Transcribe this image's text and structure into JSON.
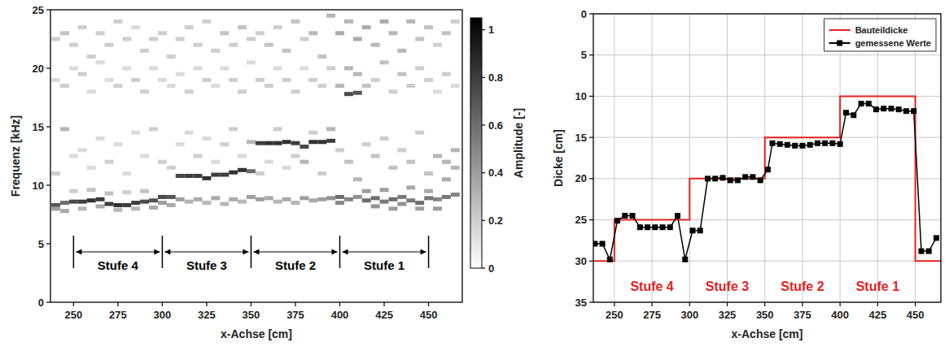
{
  "chart_data": [
    {
      "type": "heatmap",
      "x_label": "x-Achse [cm]",
      "y_label": "Frequenz [kHz]",
      "xlim": [
        237,
        469
      ],
      "xticks": [
        250,
        275,
        300,
        325,
        350,
        375,
        400,
        425,
        450
      ],
      "ylim": [
        0,
        25
      ],
      "yticks": [
        0,
        5,
        10,
        15,
        20,
        25
      ],
      "cells": [
        [
          240,
          8.3,
          0.7
        ],
        [
          240,
          8.0,
          0.4
        ],
        [
          240,
          11,
          0.2
        ],
        [
          240,
          19,
          0.15
        ],
        [
          240,
          22.5,
          0.2
        ],
        [
          245,
          8.5,
          0.6
        ],
        [
          245,
          7.8,
          0.35
        ],
        [
          245,
          14.8,
          0.3
        ],
        [
          245,
          18.5,
          0.2
        ],
        [
          245,
          23,
          0.25
        ],
        [
          250,
          8.6,
          0.75
        ],
        [
          250,
          9.5,
          0.2
        ],
        [
          250,
          12.5,
          0.15
        ],
        [
          250,
          20,
          0.15
        ],
        [
          250,
          22,
          0.2
        ],
        [
          255,
          8.6,
          0.8
        ],
        [
          255,
          8.0,
          0.3
        ],
        [
          255,
          13,
          0.15
        ],
        [
          255,
          19.5,
          0.2
        ],
        [
          255,
          23.5,
          0.2
        ],
        [
          260,
          8.7,
          0.85
        ],
        [
          260,
          9.6,
          0.25
        ],
        [
          260,
          11.5,
          0.15
        ],
        [
          260,
          18,
          0.15
        ],
        [
          260,
          21,
          0.2
        ],
        [
          265,
          8.8,
          0.8
        ],
        [
          265,
          8.2,
          0.35
        ],
        [
          265,
          14,
          0.15
        ],
        [
          265,
          20.5,
          0.15
        ],
        [
          265,
          23,
          0.2
        ],
        [
          270,
          8.4,
          0.8
        ],
        [
          270,
          9.3,
          0.25
        ],
        [
          270,
          12,
          0.2
        ],
        [
          270,
          19,
          0.15
        ],
        [
          270,
          22,
          0.2
        ],
        [
          275,
          8.3,
          0.85
        ],
        [
          275,
          7.9,
          0.3
        ],
        [
          275,
          13.5,
          0.15
        ],
        [
          275,
          18.5,
          0.2
        ],
        [
          275,
          24,
          0.2
        ],
        [
          280,
          8.3,
          0.8
        ],
        [
          280,
          9.4,
          0.2
        ],
        [
          280,
          11,
          0.15
        ],
        [
          280,
          20,
          0.15
        ],
        [
          280,
          22.5,
          0.2
        ],
        [
          285,
          8.5,
          0.8
        ],
        [
          285,
          8.0,
          0.3
        ],
        [
          285,
          14.5,
          0.15
        ],
        [
          285,
          19,
          0.2
        ],
        [
          285,
          23.5,
          0.15
        ],
        [
          290,
          8.6,
          0.75
        ],
        [
          290,
          9.5,
          0.25
        ],
        [
          290,
          12.5,
          0.15
        ],
        [
          290,
          18,
          0.2
        ],
        [
          290,
          21.5,
          0.2
        ],
        [
          295,
          8.7,
          0.7
        ],
        [
          295,
          8.1,
          0.35
        ],
        [
          295,
          14.8,
          0.2
        ],
        [
          295,
          20,
          0.15
        ],
        [
          295,
          22.5,
          0.2
        ],
        [
          300,
          9.0,
          0.75
        ],
        [
          300,
          8.5,
          0.4
        ],
        [
          300,
          12,
          0.2
        ],
        [
          300,
          19,
          0.15
        ],
        [
          300,
          23,
          0.2
        ],
        [
          305,
          9.0,
          0.7
        ],
        [
          305,
          8.3,
          0.35
        ],
        [
          305,
          11.5,
          0.2
        ],
        [
          305,
          18.5,
          0.15
        ],
        [
          305,
          21,
          0.2
        ],
        [
          310,
          10.8,
          0.75
        ],
        [
          310,
          8.8,
          0.4
        ],
        [
          310,
          13.5,
          0.15
        ],
        [
          310,
          19.5,
          0.15
        ],
        [
          310,
          22.5,
          0.2
        ],
        [
          315,
          10.8,
          0.8
        ],
        [
          315,
          8.6,
          0.3
        ],
        [
          315,
          14.5,
          0.15
        ],
        [
          315,
          18,
          0.2
        ],
        [
          315,
          23.5,
          0.2
        ],
        [
          320,
          10.8,
          0.8
        ],
        [
          320,
          8.8,
          0.35
        ],
        [
          320,
          12.5,
          0.2
        ],
        [
          320,
          20,
          0.15
        ],
        [
          320,
          22,
          0.2
        ],
        [
          325,
          10.6,
          0.85
        ],
        [
          325,
          8.5,
          0.3
        ],
        [
          325,
          14,
          0.15
        ],
        [
          325,
          19,
          0.2
        ],
        [
          325,
          24,
          0.2
        ],
        [
          330,
          10.9,
          0.8
        ],
        [
          330,
          8.9,
          0.35
        ],
        [
          330,
          12,
          0.15
        ],
        [
          330,
          18.5,
          0.15
        ],
        [
          330,
          21.5,
          0.2
        ],
        [
          335,
          10.9,
          0.8
        ],
        [
          335,
          8.4,
          0.3
        ],
        [
          335,
          13.5,
          0.2
        ],
        [
          335,
          20,
          0.15
        ],
        [
          335,
          23,
          0.25
        ],
        [
          340,
          11.1,
          0.85
        ],
        [
          340,
          8.8,
          0.35
        ],
        [
          340,
          14.8,
          0.2
        ],
        [
          340,
          19,
          0.2
        ],
        [
          340,
          22,
          0.2
        ],
        [
          345,
          11.3,
          0.85
        ],
        [
          345,
          8.6,
          0.3
        ],
        [
          345,
          12.5,
          0.15
        ],
        [
          345,
          18,
          0.2
        ],
        [
          345,
          23.5,
          0.25
        ],
        [
          350,
          11.2,
          0.6
        ],
        [
          350,
          9.0,
          0.4
        ],
        [
          350,
          13.7,
          0.3
        ],
        [
          350,
          20.5,
          0.15
        ],
        [
          350,
          22.5,
          0.2
        ],
        [
          355,
          13.6,
          0.8
        ],
        [
          355,
          8.8,
          0.4
        ],
        [
          355,
          11,
          0.2
        ],
        [
          355,
          19,
          0.2
        ],
        [
          355,
          23,
          0.2
        ],
        [
          360,
          13.6,
          0.85
        ],
        [
          360,
          8.9,
          0.35
        ],
        [
          360,
          12,
          0.15
        ],
        [
          360,
          18.5,
          0.2
        ],
        [
          360,
          22,
          0.25
        ],
        [
          365,
          13.6,
          0.85
        ],
        [
          365,
          8.6,
          0.3
        ],
        [
          365,
          14.8,
          0.2
        ],
        [
          365,
          20,
          0.15
        ],
        [
          365,
          23.5,
          0.2
        ],
        [
          370,
          13.7,
          0.85
        ],
        [
          370,
          8.8,
          0.35
        ],
        [
          370,
          11.5,
          0.15
        ],
        [
          370,
          19,
          0.2
        ],
        [
          370,
          21.5,
          0.25
        ],
        [
          375,
          13.6,
          0.8
        ],
        [
          375,
          8.5,
          0.3
        ],
        [
          375,
          12.5,
          0.2
        ],
        [
          375,
          18,
          0.2
        ],
        [
          375,
          24,
          0.25
        ],
        [
          380,
          13.3,
          0.75
        ],
        [
          380,
          8.9,
          0.4
        ],
        [
          380,
          12,
          0.3
        ],
        [
          380,
          20,
          0.15
        ],
        [
          380,
          22.5,
          0.2
        ],
        [
          385,
          13.7,
          0.85
        ],
        [
          385,
          8.7,
          0.35
        ],
        [
          385,
          14.5,
          0.2
        ],
        [
          385,
          19,
          0.2
        ],
        [
          385,
          23,
          0.3
        ],
        [
          390,
          13.7,
          0.85
        ],
        [
          390,
          8.8,
          0.4
        ],
        [
          390,
          11,
          0.2
        ],
        [
          390,
          18.5,
          0.2
        ],
        [
          390,
          21,
          0.25
        ],
        [
          395,
          13.8,
          0.8
        ],
        [
          395,
          8.9,
          0.45
        ],
        [
          395,
          14.8,
          0.3
        ],
        [
          395,
          20,
          0.2
        ],
        [
          395,
          24.5,
          0.3
        ],
        [
          400,
          9.0,
          0.6
        ],
        [
          400,
          8.5,
          0.5
        ],
        [
          400,
          13,
          0.2
        ],
        [
          400,
          18.5,
          0.3
        ],
        [
          400,
          23,
          0.35
        ],
        [
          405,
          17.8,
          0.75
        ],
        [
          405,
          8.8,
          0.5
        ],
        [
          405,
          12,
          0.25
        ],
        [
          405,
          20,
          0.3
        ],
        [
          405,
          24,
          0.3
        ],
        [
          410,
          17.9,
          0.7
        ],
        [
          410,
          9.0,
          0.45
        ],
        [
          410,
          10.5,
          0.3
        ],
        [
          410,
          19.5,
          0.3
        ],
        [
          410,
          22.5,
          0.35
        ],
        [
          415,
          8.7,
          0.6
        ],
        [
          415,
          9.5,
          0.4
        ],
        [
          415,
          13.5,
          0.2
        ],
        [
          415,
          18.5,
          0.25
        ],
        [
          415,
          23.5,
          0.35
        ],
        [
          420,
          8.9,
          0.6
        ],
        [
          420,
          8.2,
          0.45
        ],
        [
          420,
          12.5,
          0.25
        ],
        [
          420,
          19,
          0.2
        ],
        [
          420,
          22,
          0.3
        ],
        [
          425,
          8.6,
          0.55
        ],
        [
          425,
          9.6,
          0.4
        ],
        [
          425,
          14,
          0.2
        ],
        [
          425,
          20.5,
          0.25
        ],
        [
          425,
          24,
          0.35
        ],
        [
          430,
          8.8,
          0.6
        ],
        [
          430,
          8.0,
          0.4
        ],
        [
          430,
          11.5,
          0.25
        ],
        [
          430,
          18,
          0.2
        ],
        [
          430,
          23,
          0.3
        ],
        [
          435,
          9.0,
          0.55
        ],
        [
          435,
          8.4,
          0.45
        ],
        [
          435,
          13,
          0.2
        ],
        [
          435,
          19.5,
          0.25
        ],
        [
          435,
          21.5,
          0.3
        ],
        [
          440,
          8.7,
          0.55
        ],
        [
          440,
          9.8,
          0.35
        ],
        [
          440,
          12,
          0.25
        ],
        [
          440,
          18.5,
          0.2
        ],
        [
          440,
          24,
          0.3
        ],
        [
          445,
          8.5,
          0.6
        ],
        [
          445,
          8.0,
          0.4
        ],
        [
          445,
          14.5,
          0.2
        ],
        [
          445,
          20,
          0.2
        ],
        [
          445,
          22.5,
          0.25
        ],
        [
          450,
          8.9,
          0.55
        ],
        [
          450,
          9.5,
          0.35
        ],
        [
          450,
          11,
          0.25
        ],
        [
          450,
          19,
          0.2
        ],
        [
          450,
          23.5,
          0.25
        ],
        [
          455,
          8.8,
          0.5
        ],
        [
          455,
          8.0,
          0.4
        ],
        [
          455,
          12.5,
          0.3
        ],
        [
          455,
          18,
          0.15
        ],
        [
          455,
          22,
          0.2
        ],
        [
          460,
          9.0,
          0.55
        ],
        [
          460,
          10.5,
          0.35
        ],
        [
          460,
          12,
          0.3
        ],
        [
          460,
          19.5,
          0.2
        ],
        [
          460,
          23,
          0.25
        ],
        [
          465,
          9.2,
          0.5
        ],
        [
          465,
          11.5,
          0.3
        ],
        [
          465,
          13,
          0.3
        ],
        [
          465,
          18.5,
          0.15
        ],
        [
          465,
          24,
          0.2
        ]
      ],
      "colorbar": {
        "label": "Amplitude [-]",
        "range": [
          0,
          1.05
        ],
        "ticks": [
          0,
          0.2,
          0.4,
          0.6,
          0.8,
          1
        ]
      },
      "steps": [
        {
          "label": "Stufe 4",
          "x0": 250,
          "x1": 300,
          "color": "#000000"
        },
        {
          "label": "Stufe 3",
          "x0": 300,
          "x1": 350,
          "color": "#000000"
        },
        {
          "label": "Stufe 2",
          "x0": 350,
          "x1": 400,
          "color": "#000000"
        },
        {
          "label": "Stufe 1",
          "x0": 400,
          "x1": 450,
          "color": "#000000"
        }
      ]
    },
    {
      "type": "line",
      "x_label": "x-Achse [cm]",
      "y_label": "Dicke [cm]",
      "xlim": [
        236,
        467
      ],
      "xticks": [
        250,
        275,
        300,
        325,
        350,
        375,
        400,
        425,
        450
      ],
      "ylim": [
        35,
        0
      ],
      "yticks": [
        0,
        5,
        10,
        15,
        20,
        25,
        30,
        35
      ],
      "grid": true,
      "legend": "upper right",
      "series": [
        {
          "name": "Bauteildicke",
          "color": "#e8211f",
          "marker": "none",
          "line_style": "solid",
          "x": [
            236,
            250,
            250,
            300,
            300,
            350,
            350,
            400,
            400,
            450,
            450,
            467
          ],
          "values": [
            30,
            30,
            25,
            25,
            20,
            20,
            15,
            15,
            10,
            10,
            30,
            30
          ]
        },
        {
          "name": "gemessene Werte",
          "color": "#000000",
          "marker": "square",
          "line_style": "solid",
          "x": [
            237,
            242,
            247,
            252,
            257,
            262,
            267,
            272,
            277,
            282,
            287,
            292,
            297,
            302,
            307,
            312,
            317,
            322,
            327,
            332,
            337,
            342,
            347,
            352,
            355,
            360,
            365,
            370,
            375,
            380,
            385,
            390,
            395,
            400,
            404,
            409,
            414,
            419,
            424,
            429,
            434,
            439,
            444,
            449,
            454,
            459,
            464
          ],
          "values": [
            27.9,
            27.9,
            29.8,
            25.1,
            24.5,
            24.5,
            25.9,
            25.9,
            25.9,
            25.9,
            25.9,
            24.5,
            29.8,
            26.3,
            26.3,
            20.0,
            20.0,
            19.9,
            20.2,
            20.2,
            19.8,
            19.8,
            20.2,
            18.9,
            15.7,
            15.8,
            15.9,
            16.0,
            16.0,
            15.9,
            15.7,
            15.7,
            15.7,
            15.8,
            12.0,
            12.3,
            10.9,
            10.9,
            11.6,
            11.5,
            11.5,
            11.6,
            11.8,
            11.8,
            28.8,
            28.8,
            27.2
          ]
        }
      ],
      "steps": [
        {
          "label": "Stufe 4",
          "x0": 250,
          "x1": 300,
          "color": "#e8211f"
        },
        {
          "label": "Stufe 3",
          "x0": 300,
          "x1": 350,
          "color": "#e8211f"
        },
        {
          "label": "Stufe 2",
          "x0": 350,
          "x1": 400,
          "color": "#e8211f"
        },
        {
          "label": "Stufe 1",
          "x0": 400,
          "x1": 450,
          "color": "#e8211f"
        }
      ]
    }
  ]
}
